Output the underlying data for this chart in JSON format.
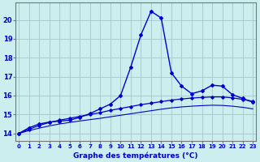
{
  "xlabel": "Graphe des températures (°C)",
  "background_color": "#cceeee",
  "grid_color": "#aacccc",
  "line_color": "#0000cc",
  "x_ticks": [
    0,
    1,
    2,
    3,
    4,
    5,
    6,
    7,
    8,
    9,
    10,
    11,
    12,
    13,
    14,
    15,
    16,
    17,
    18,
    19,
    20,
    21,
    22,
    23
  ],
  "y_ticks": [
    14,
    15,
    16,
    17,
    18,
    19,
    20
  ],
  "ylim": [
    13.6,
    20.9
  ],
  "xlim": [
    -0.3,
    23.3
  ],
  "line1_x": [
    0,
    1,
    2,
    3,
    4,
    5,
    6,
    7,
    8,
    9,
    10,
    11,
    12,
    13,
    14,
    15,
    16,
    17,
    18,
    19,
    20,
    21,
    22,
    23
  ],
  "line1_y": [
    14.0,
    14.3,
    14.5,
    14.6,
    14.65,
    14.7,
    14.85,
    15.05,
    15.3,
    15.55,
    16.0,
    17.5,
    19.2,
    20.45,
    20.1,
    17.2,
    16.5,
    16.1,
    16.25,
    16.55,
    16.5,
    16.05,
    15.85,
    15.65
  ],
  "line2_x": [
    0,
    1,
    2,
    3,
    4,
    5,
    6,
    7,
    8,
    9,
    10,
    11,
    12,
    13,
    14,
    15,
    16,
    17,
    18,
    19,
    20,
    21,
    22,
    23
  ],
  "line2_y": [
    14.0,
    14.22,
    14.42,
    14.58,
    14.7,
    14.8,
    14.9,
    15.0,
    15.1,
    15.22,
    15.32,
    15.42,
    15.52,
    15.6,
    15.68,
    15.76,
    15.82,
    15.87,
    15.9,
    15.93,
    15.93,
    15.88,
    15.8,
    15.7
  ],
  "line3_x": [
    0,
    1,
    2,
    3,
    4,
    5,
    6,
    7,
    8,
    9,
    10,
    11,
    12,
    13,
    14,
    15,
    16,
    17,
    18,
    19,
    20,
    21,
    22,
    23
  ],
  "line3_y": [
    14.0,
    14.15,
    14.28,
    14.4,
    14.5,
    14.58,
    14.66,
    14.73,
    14.8,
    14.88,
    14.96,
    15.04,
    15.12,
    15.2,
    15.28,
    15.35,
    15.4,
    15.44,
    15.47,
    15.49,
    15.48,
    15.44,
    15.38,
    15.3
  ]
}
